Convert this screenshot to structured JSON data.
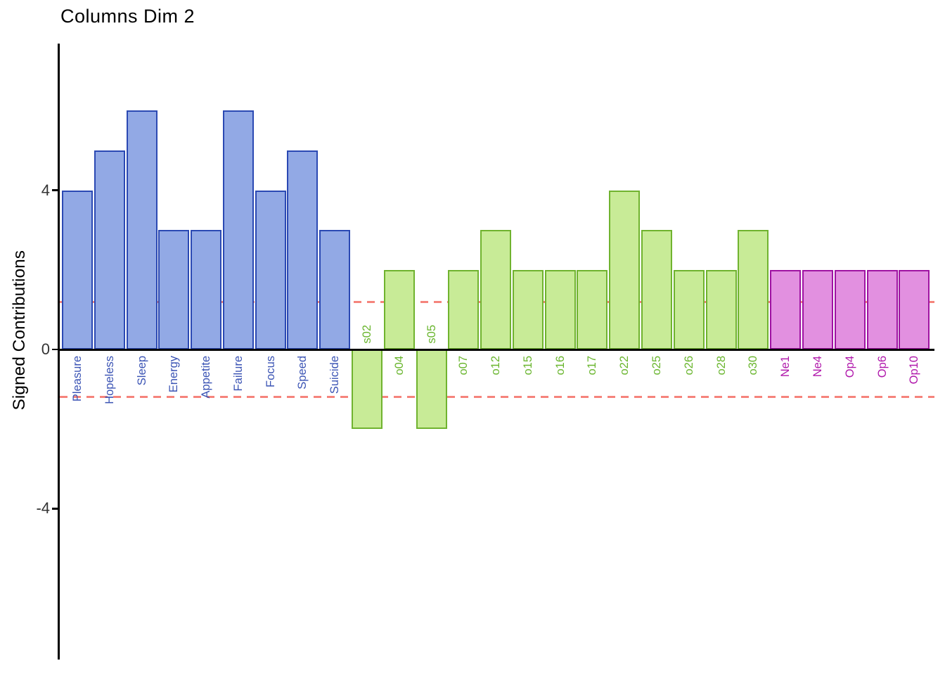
{
  "chart_data": {
    "type": "bar",
    "title": "Columns Dim 2",
    "ylabel": "Signed Contributions",
    "xlabel": "",
    "grid": false,
    "legend": "none",
    "ylim": [
      -7.7,
      7.7
    ],
    "yticks": [
      {
        "label": "4",
        "value": 4
      },
      {
        "label": "0",
        "value": 0
      },
      {
        "label": "-4",
        "value": -4
      }
    ],
    "reference_lines": {
      "color": "#F5847C",
      "style": "dashed",
      "values": [
        1.2,
        -1.2
      ]
    },
    "axis_color": "#000000",
    "tick_label_color": "#333333",
    "groups": [
      {
        "name": "blue-group",
        "fill": "#92A9E5",
        "stroke": "#2B49B3",
        "label_color": "#3A53B4",
        "bars": [
          {
            "label": "Pleasure",
            "value": 4
          },
          {
            "label": "Hopeless",
            "value": 5
          },
          {
            "label": "Sleep",
            "value": 6
          },
          {
            "label": "Energy",
            "value": 3
          },
          {
            "label": "Appetite",
            "value": 3
          },
          {
            "label": "Failure",
            "value": 6
          },
          {
            "label": "Focus",
            "value": 4
          },
          {
            "label": "Speed",
            "value": 5
          },
          {
            "label": "Suicide",
            "value": 3
          }
        ]
      },
      {
        "name": "green-group",
        "fill": "#C8EB97",
        "stroke": "#70B32F",
        "label_color": "#69B52D",
        "bars": [
          {
            "label": "s02",
            "value": -2
          },
          {
            "label": "o04",
            "value": 2
          },
          {
            "label": "s05",
            "value": -2
          },
          {
            "label": "o07",
            "value": 2
          },
          {
            "label": "o12",
            "value": 3
          },
          {
            "label": "o15",
            "value": 2
          },
          {
            "label": "o16",
            "value": 2
          },
          {
            "label": "o17",
            "value": 2
          },
          {
            "label": "o22",
            "value": 4
          },
          {
            "label": "o25",
            "value": 3
          },
          {
            "label": "o26",
            "value": 2
          },
          {
            "label": "o28",
            "value": 2
          },
          {
            "label": "o30",
            "value": 3
          }
        ]
      },
      {
        "name": "magenta-group",
        "fill": "#E290E0",
        "stroke": "#9F13A2",
        "label_color": "#B018AB",
        "bars": [
          {
            "label": "Ne1",
            "value": 2
          },
          {
            "label": "Ne4",
            "value": 2
          },
          {
            "label": "Op4",
            "value": 2
          },
          {
            "label": "Op6",
            "value": 2
          },
          {
            "label": "Op10",
            "value": 2
          }
        ]
      }
    ]
  }
}
